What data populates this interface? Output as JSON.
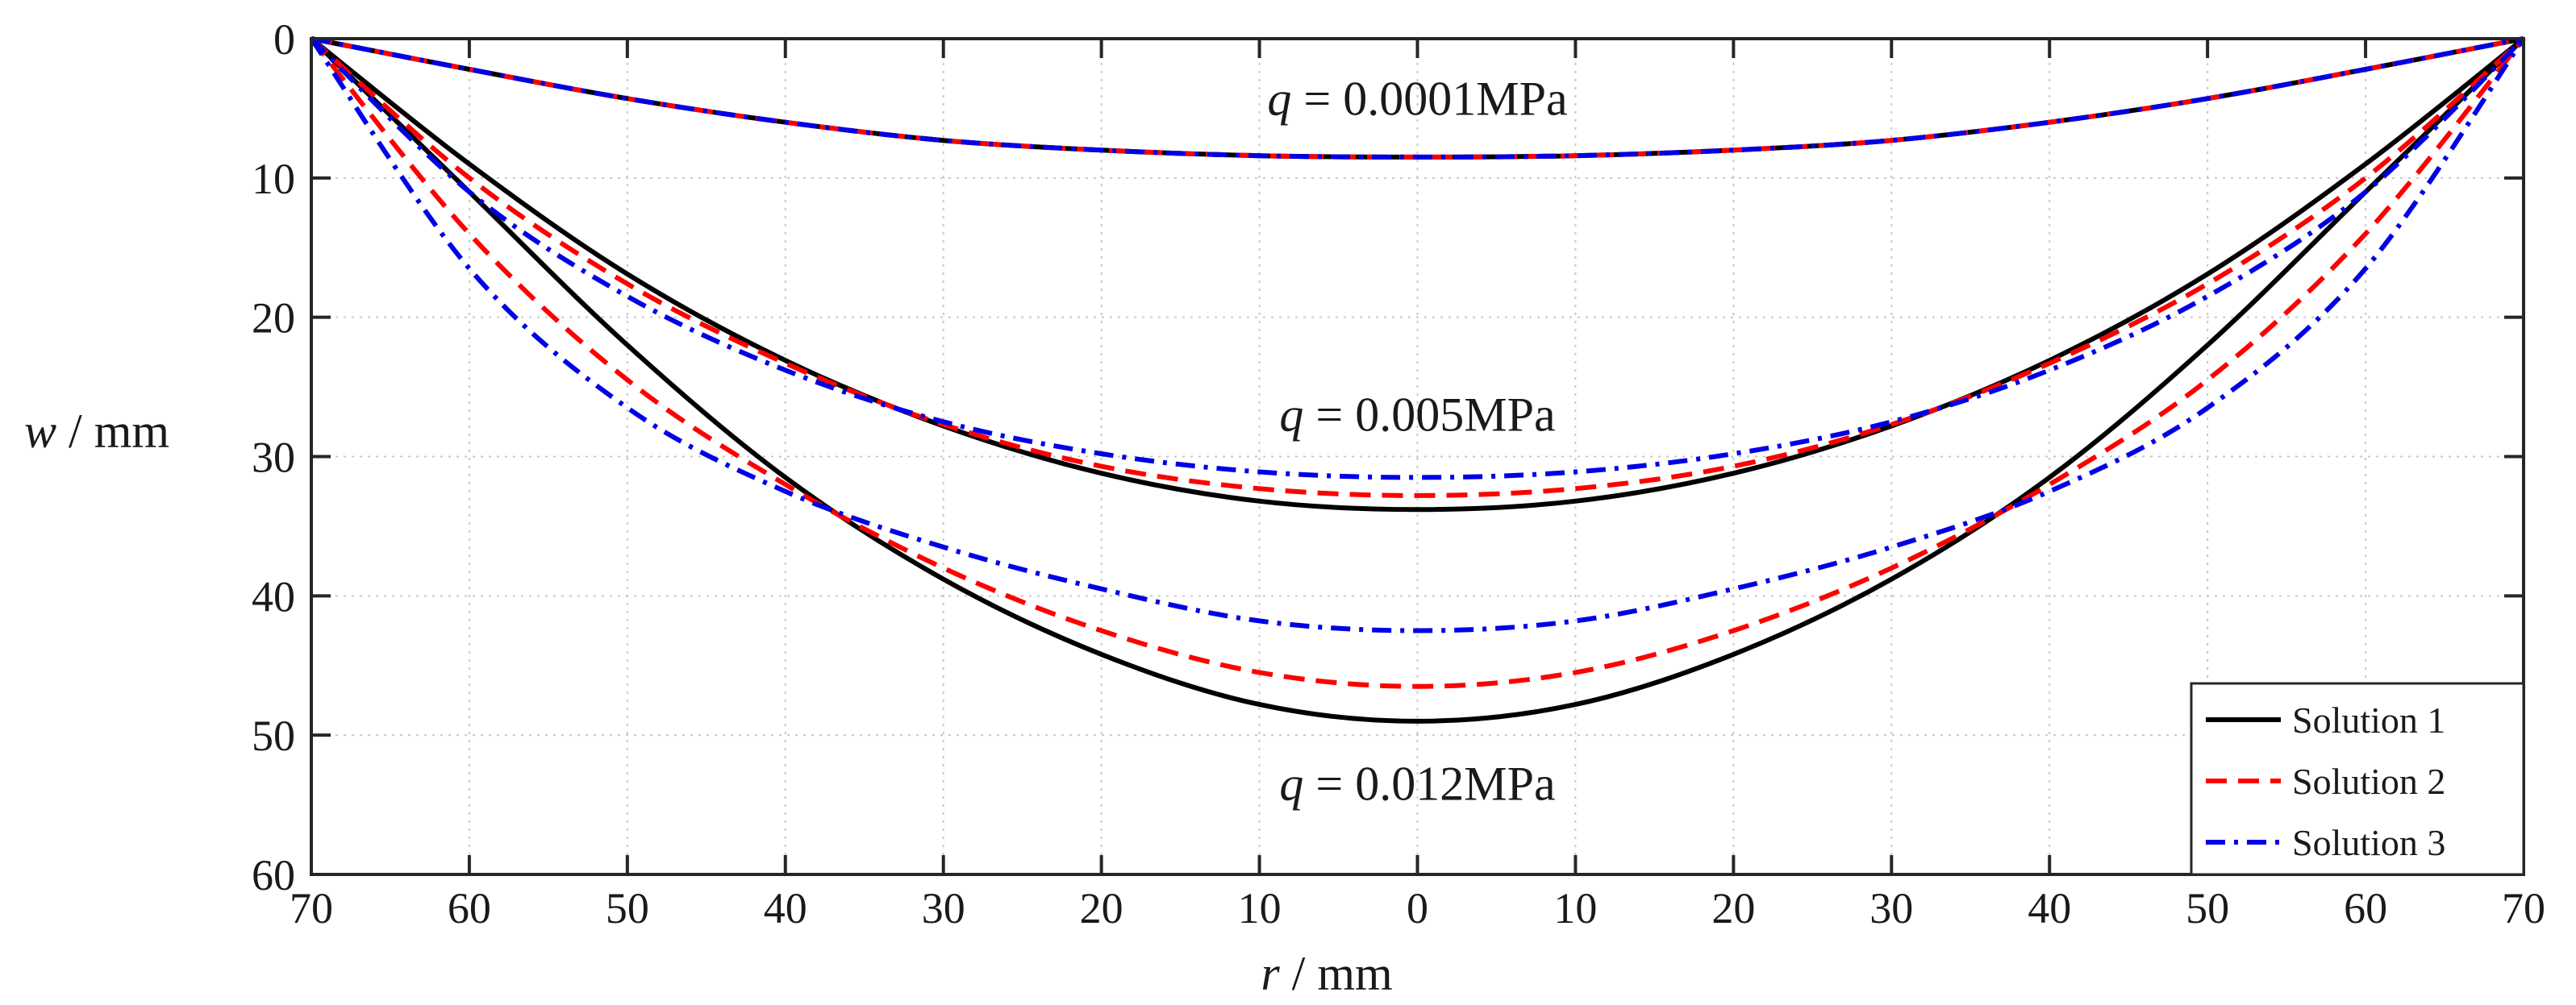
{
  "chart_data": {
    "type": "line",
    "title": "",
    "xlabel": {
      "var": "r",
      "unit": " / mm"
    },
    "ylabel": {
      "var": "w",
      "unit": " / mm"
    },
    "xlim": [
      -70,
      70
    ],
    "ylim": [
      0,
      60
    ],
    "y_inverted": true,
    "grid": true,
    "x_ticks": [
      -70,
      -60,
      -50,
      -40,
      -30,
      -20,
      -10,
      0,
      10,
      20,
      30,
      40,
      50,
      60,
      70
    ],
    "x_tick_labels": [
      "70",
      "60",
      "50",
      "40",
      "30",
      "20",
      "10",
      "0",
      "10",
      "20",
      "30",
      "40",
      "50",
      "60",
      "70"
    ],
    "y_ticks": [
      0,
      10,
      20,
      30,
      40,
      50,
      60
    ],
    "y_tick_labels": [
      "0",
      "10",
      "20",
      "30",
      "40",
      "50",
      "60"
    ],
    "legend_position": "bottom-right",
    "series": [
      {
        "name": "Solution 1",
        "color": "#000000",
        "style": "solid",
        "load_cases": [
          {
            "q": 0.0001,
            "r": [
              -70,
              -60,
              -50,
              -40,
              -30,
              -20,
              -10,
              0,
              10,
              20,
              30,
              40,
              50,
              60,
              70
            ],
            "w": [
              0,
              2.2,
              4.3,
              6.0,
              7.3,
              8.0,
              8.4,
              8.5,
              8.4,
              8.0,
              7.3,
              6.0,
              4.3,
              2.2,
              0
            ]
          },
          {
            "q": 0.005,
            "r": [
              -70,
              -60,
              -50,
              -40,
              -30,
              -20,
              -10,
              0,
              10,
              20,
              30,
              40,
              50,
              60,
              70
            ],
            "w": [
              0,
              9.0,
              16.9,
              23.1,
              27.8,
              31.2,
              33.2,
              33.8,
              33.2,
              31.2,
              27.8,
              23.1,
              16.9,
              9.0,
              0
            ]
          },
          {
            "q": 0.012,
            "r": [
              -70,
              -60,
              -50,
              -40,
              -30,
              -20,
              -10,
              0,
              10,
              20,
              30,
              40,
              50,
              60,
              70
            ],
            "w": [
              0,
              11.0,
              22.0,
              31.5,
              38.8,
              44.2,
              47.8,
              49.0,
              47.8,
              44.2,
              38.8,
              31.5,
              22.0,
              11.0,
              0
            ]
          }
        ]
      },
      {
        "name": "Solution 2",
        "color": "#ff0000",
        "style": "dashed",
        "load_cases": [
          {
            "q": 0.0001,
            "r": [
              -70,
              -60,
              -50,
              -40,
              -30,
              -20,
              -10,
              0,
              10,
              20,
              30,
              40,
              50,
              60,
              70
            ],
            "w": [
              0,
              2.2,
              4.3,
              6.0,
              7.3,
              8.0,
              8.4,
              8.5,
              8.4,
              8.0,
              7.3,
              6.0,
              4.3,
              2.2,
              0
            ]
          },
          {
            "q": 0.005,
            "r": [
              -70,
              -60,
              -50,
              -40,
              -30,
              -20,
              -10,
              0,
              10,
              20,
              30,
              40,
              50,
              60,
              70
            ],
            "w": [
              0,
              10.0,
              17.6,
              23.3,
              27.7,
              30.7,
              32.3,
              32.8,
              32.3,
              30.7,
              27.7,
              23.3,
              17.6,
              10.0,
              0
            ]
          },
          {
            "q": 0.012,
            "r": [
              -70,
              -60,
              -50,
              -40,
              -30,
              -20,
              -10,
              0,
              10,
              20,
              30,
              40,
              50,
              60,
              70
            ],
            "w": [
              0,
              14.0,
              24.5,
              32.0,
              38.0,
              42.5,
              45.5,
              46.5,
              45.5,
              42.5,
              38.0,
              32.0,
              24.5,
              14.0,
              0
            ]
          }
        ]
      },
      {
        "name": "Solution 3",
        "color": "#0000e6",
        "style": "dashdot",
        "load_cases": [
          {
            "q": 0.0001,
            "r": [
              -70,
              -60,
              -50,
              -40,
              -30,
              -20,
              -10,
              0,
              10,
              20,
              30,
              40,
              50,
              60,
              70
            ],
            "w": [
              0,
              2.2,
              4.3,
              6.0,
              7.3,
              8.0,
              8.4,
              8.5,
              8.4,
              8.0,
              7.3,
              6.0,
              4.3,
              2.2,
              0
            ]
          },
          {
            "q": 0.005,
            "r": [
              -70,
              -60,
              -50,
              -40,
              -30,
              -20,
              -10,
              0,
              10,
              20,
              30,
              40,
              50,
              60,
              70
            ],
            "w": [
              0,
              11.0,
              18.5,
              23.8,
              27.5,
              29.8,
              31.1,
              31.5,
              31.1,
              29.8,
              27.5,
              23.8,
              18.5,
              11.0,
              0
            ]
          },
          {
            "q": 0.012,
            "r": [
              -70,
              -60,
              -50,
              -40,
              -30,
              -20,
              -10,
              0,
              10,
              20,
              30,
              40,
              50,
              60,
              70
            ],
            "w": [
              0,
              16.5,
              26.5,
              32.5,
              36.5,
              39.5,
              41.8,
              42.5,
              41.8,
              39.5,
              36.5,
              32.5,
              26.5,
              16.5,
              0
            ]
          }
        ]
      }
    ],
    "annotations": [
      {
        "var": "q",
        "text": " = 0.0001MPa",
        "r": 0,
        "w": 4.3
      },
      {
        "var": "q",
        "text": " = 0.005MPa",
        "r": 0,
        "w": 27.0
      },
      {
        "var": "q",
        "text": " = 0.012MPa",
        "r": 0,
        "w": 53.5
      }
    ]
  }
}
